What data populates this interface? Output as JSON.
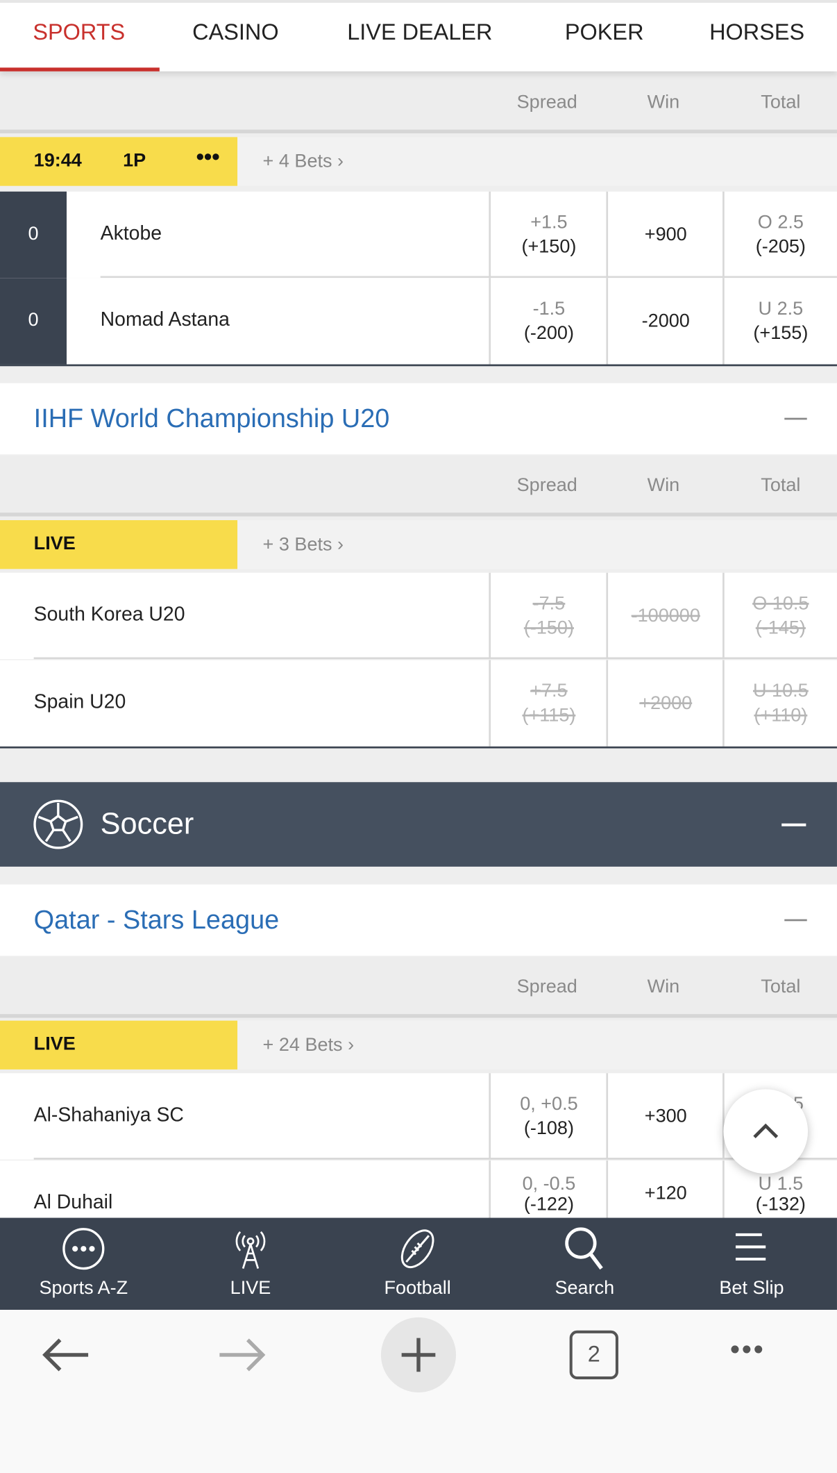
{
  "top_tabs": [
    {
      "label": "SPORTS",
      "active": true
    },
    {
      "label": "CASINO"
    },
    {
      "label": "LIVE DEALER"
    },
    {
      "label": "POKER"
    },
    {
      "label": "HORSES"
    }
  ],
  "columns": {
    "spread": "Spread",
    "win": "Win",
    "total": "Total"
  },
  "match1": {
    "time": "19:44",
    "period": "1P",
    "more_icon": "ellipsis-icon",
    "bets": "+ 4 Bets",
    "teams": [
      {
        "score": "0",
        "name": "Aktobe",
        "spread": "+1.5",
        "spread_odds": "(+150)",
        "win": "+900",
        "total": "O 2.5",
        "total_odds": "(-205)"
      },
      {
        "score": "0",
        "name": "Nomad Astana",
        "spread": "-1.5",
        "spread_odds": "(-200)",
        "win": "-2000",
        "total": "U 2.5",
        "total_odds": "(+155)"
      }
    ]
  },
  "league1": {
    "name": "IIHF World Championship U20",
    "match": {
      "status": "LIVE",
      "bets": "+ 3 Bets",
      "teams": [
        {
          "name": "South Korea U20",
          "spread": "-7.5",
          "spread_odds": "(-150)",
          "win": "-100000",
          "total": "O 10.5",
          "total_odds": "(-145)"
        },
        {
          "name": "Spain U20",
          "spread": "+7.5",
          "spread_odds": "(+115)",
          "win": "+2000",
          "total": "U 10.5",
          "total_odds": "(+110)"
        }
      ],
      "suspended": true
    }
  },
  "sport": {
    "name": "Soccer",
    "icon": "soccer-ball-icon"
  },
  "league2": {
    "name": "Qatar - Stars League",
    "match": {
      "status": "LIVE",
      "bets": "+ 24 Bets",
      "teams": [
        {
          "name": "Al-Shahaniya SC",
          "spread": "0, +0.5",
          "spread_odds": "(-108)",
          "win": "+300",
          "total": "O 1.5",
          "total_odds": "(-1xx)"
        },
        {
          "name": "Al Duhail",
          "spread": "0, -0.5",
          "spread_odds": "(-122)",
          "win": "+120",
          "total": "U 1.5",
          "total_odds": "(-132)"
        }
      ]
    }
  },
  "bottom_nav": [
    {
      "label": "Sports A-Z",
      "icon": "more-circle-icon"
    },
    {
      "label": "LIVE",
      "icon": "antenna-icon"
    },
    {
      "label": "Football",
      "icon": "football-icon"
    },
    {
      "label": "Search",
      "icon": "search-icon"
    },
    {
      "label": "Bet Slip",
      "icon": "list-icon"
    }
  ],
  "browser": {
    "tab_count": "2"
  }
}
